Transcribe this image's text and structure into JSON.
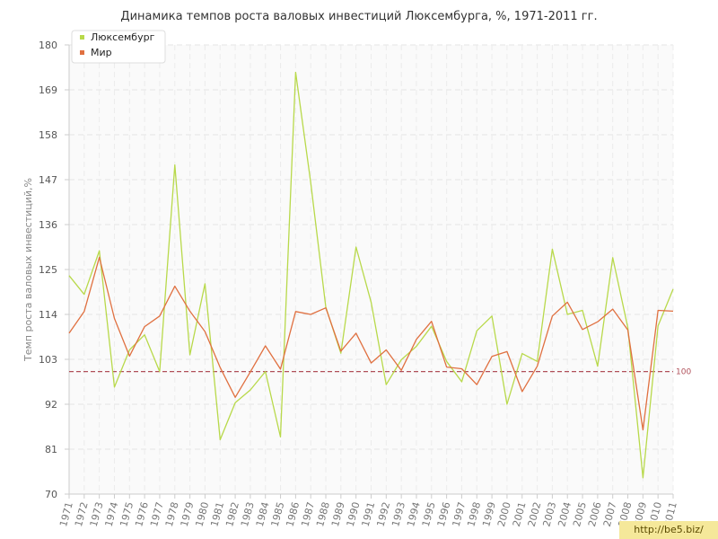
{
  "chart_data": {
    "type": "line",
    "title": "Динамика темпов роста валовых инвестиций Люксембурга, %, 1971-2011 гг.",
    "xlabel": "",
    "ylabel": "Темп роста валовых инвестиций,%",
    "ylim": [
      70,
      180
    ],
    "yticks": [
      "70",
      "81",
      "92",
      "103",
      "114",
      "125",
      "136",
      "147",
      "158",
      "169",
      "180"
    ],
    "categories": [
      "1971",
      "1972",
      "1973",
      "1974",
      "1975",
      "1976",
      "1977",
      "1978",
      "1979",
      "1980",
      "1981",
      "1982",
      "1983",
      "1984",
      "1985",
      "1986",
      "1987",
      "1988",
      "1989",
      "1990",
      "1991",
      "1992",
      "1993",
      "1994",
      "1995",
      "1996",
      "1997",
      "1998",
      "1999",
      "2000",
      "2001",
      "2002",
      "2003",
      "2004",
      "2005",
      "2006",
      "2007",
      "2008",
      "2009",
      "2010",
      "2011"
    ],
    "series": [
      {
        "name": "Люксембург",
        "color": "#b8d94a",
        "values": [
          123.5,
          118.9,
          129.6,
          96.2,
          105.3,
          109,
          100,
          150.6,
          104.1,
          121.5,
          83.3,
          92.4,
          95.5,
          100,
          84,
          173.3,
          146.3,
          115.8,
          104.5,
          130.5,
          117,
          96.8,
          102.9,
          106.2,
          111.1,
          102.5,
          97.5,
          110,
          113.6,
          92,
          104.4,
          102.5,
          130,
          114,
          115,
          101.3,
          127.9,
          110.8,
          74,
          111.2,
          120.2
        ]
      },
      {
        "name": "Мир",
        "color": "#e07040",
        "values": [
          109.4,
          114.7,
          128,
          113,
          103.8,
          111,
          113.6,
          120.9,
          114.8,
          109.8,
          101,
          93.7,
          99.9,
          106.3,
          100.6,
          114.7,
          114,
          115.6,
          105,
          109.4,
          102.1,
          105.3,
          100.3,
          107.9,
          112.3,
          101.1,
          100.7,
          96.8,
          103.7,
          104.9,
          95.1,
          101.3,
          113.6,
          117,
          110.3,
          112.2,
          115.3,
          110.2,
          85.7,
          115,
          114.8
        ]
      }
    ],
    "reference_line": {
      "value": 100,
      "label": "100",
      "color": "#b0505a"
    },
    "legend_position": "top-left",
    "grid": true
  },
  "watermark": "http://be5.biz/"
}
